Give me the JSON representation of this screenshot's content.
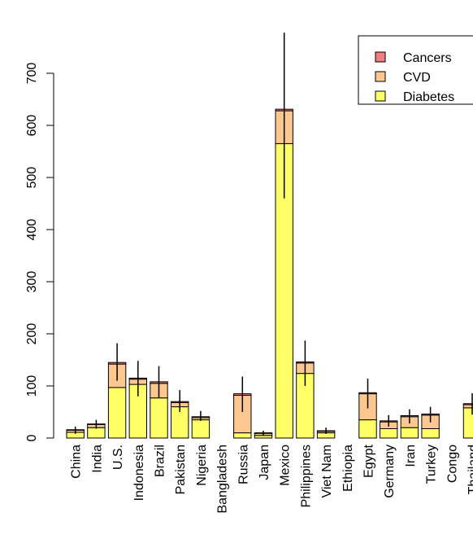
{
  "chart_data": {
    "type": "bar",
    "stacked": true,
    "title": "",
    "xlabel": "",
    "ylabel": "",
    "ylim": [
      0,
      700
    ],
    "yticks": [
      0,
      100,
      200,
      300,
      400,
      500,
      600,
      700
    ],
    "grid": false,
    "legend_position": "top-right",
    "categories": [
      "China",
      "India",
      "U.S.",
      "Indonesia",
      "Brazil",
      "Pakistan",
      "Nigeria",
      "Bangladesh",
      "Russia",
      "Japan",
      "Mexico",
      "Philippines",
      "Viet Nam",
      "Ethiopia",
      "Egypt",
      "Germany",
      "Iran",
      "Turkey",
      "Congo",
      "Thailand"
    ],
    "series": [
      {
        "name": "Diabetes",
        "color": "#ffff66",
        "values": [
          11,
          20,
          97,
          103,
          77,
          60,
          35,
          0,
          10,
          5,
          565,
          124,
          10,
          0,
          35,
          18,
          20,
          18,
          0,
          58
        ]
      },
      {
        "name": "CVD",
        "color": "#fcc890",
        "values": [
          4,
          6,
          45,
          10,
          28,
          8,
          4,
          0,
          72,
          4,
          63,
          20,
          3,
          0,
          50,
          13,
          21,
          26,
          0,
          6
        ]
      },
      {
        "name": "Cancers",
        "color": "#f08080",
        "values": [
          1,
          1,
          3,
          2,
          3,
          2,
          2,
          0,
          3,
          1,
          3,
          2,
          1,
          0,
          2,
          2,
          2,
          2,
          0,
          2
        ]
      }
    ],
    "error_bars": [
      {
        "low": 8,
        "high": 22
      },
      {
        "low": 18,
        "high": 35
      },
      {
        "low": 110,
        "high": 182
      },
      {
        "low": 80,
        "high": 148
      },
      {
        "low": 78,
        "high": 138
      },
      {
        "low": 50,
        "high": 92
      },
      {
        "low": 33,
        "high": 52
      },
      {
        "low": 0,
        "high": 0
      },
      {
        "low": 50,
        "high": 118
      },
      {
        "low": 5,
        "high": 14
      },
      {
        "low": 460,
        "high": 778
      },
      {
        "low": 100,
        "high": 187
      },
      {
        "low": 8,
        "high": 20
      },
      {
        "low": 0,
        "high": 0
      },
      {
        "low": 57,
        "high": 114
      },
      {
        "low": 22,
        "high": 44
      },
      {
        "low": 28,
        "high": 55
      },
      {
        "low": 30,
        "high": 60
      },
      {
        "low": 0,
        "high": 0
      },
      {
        "low": 45,
        "high": 86
      }
    ]
  }
}
